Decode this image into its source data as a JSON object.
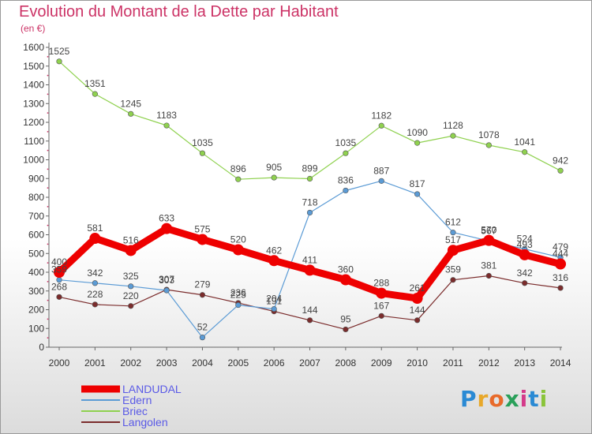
{
  "title": "Evolution du Montant de la Dette par Habitant",
  "subtitle": "(en €)",
  "logo": {
    "text": "Proxiti",
    "colors": [
      "#2a8ad4",
      "#e8a82a",
      "#e86a2a",
      "#2aa05a",
      "#d43a8a",
      "#2a8ad4",
      "#8ac43a"
    ]
  },
  "chart_data": {
    "type": "line",
    "x": [
      "2000",
      "2001",
      "2002",
      "2003",
      "2004",
      "2005",
      "2006",
      "2007",
      "2008",
      "2009",
      "2010",
      "2011",
      "2012",
      "2013",
      "2014"
    ],
    "ylim": [
      0,
      1600
    ],
    "yticks": [
      0,
      100,
      200,
      300,
      400,
      500,
      600,
      700,
      800,
      900,
      1000,
      1100,
      1200,
      1300,
      1400,
      1500,
      1600
    ],
    "grid": false,
    "legend_position": "bottom-left",
    "series": [
      {
        "name": "LANDUDAL",
        "color": "#ee0000",
        "values": [
          400,
          581,
          516,
          633,
          575,
          520,
          462,
          411,
          360,
          288,
          261,
          517,
          570,
          493,
          444
        ]
      },
      {
        "name": "Edern",
        "color": "#5b9bd5",
        "values": [
          359,
          342,
          325,
          303,
          52,
          225,
          204,
          718,
          836,
          887,
          817,
          612,
          567,
          524,
          479
        ]
      },
      {
        "name": "Briec",
        "color": "#8fd14f",
        "values": [
          1525,
          1351,
          1245,
          1183,
          1035,
          896,
          905,
          899,
          1035,
          1182,
          1090,
          1128,
          1078,
          1041,
          942
        ]
      },
      {
        "name": "Langolen",
        "color": "#7b2c2c",
        "values": [
          268,
          228,
          220,
          307,
          279,
          236,
          191,
          144,
          95,
          167,
          144,
          359,
          381,
          342,
          316
        ]
      }
    ]
  }
}
